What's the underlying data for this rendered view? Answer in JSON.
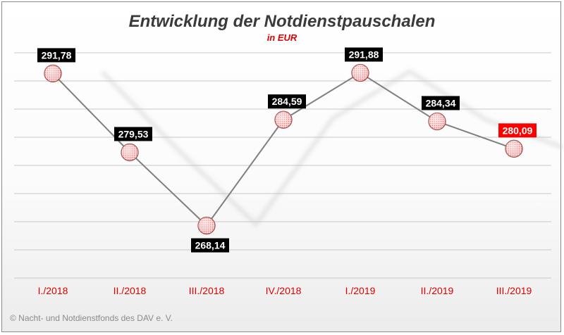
{
  "chart_data": {
    "type": "line",
    "title": "Entwicklung der Notdienstpauschalen",
    "subtitle": "in EUR",
    "categories": [
      "I./2018",
      "II./2018",
      "III./2018",
      "IV./2018",
      "I./2019",
      "II./2019",
      "III./2019"
    ],
    "values": [
      291.78,
      279.53,
      268.14,
      284.59,
      291.88,
      284.34,
      280.09
    ],
    "value_labels": [
      "291,78",
      "279,53",
      "268,14",
      "284,59",
      "291,88",
      "284,34",
      "280,09"
    ],
    "label_positions": [
      "above",
      "above",
      "below",
      "above",
      "above",
      "above",
      "above"
    ],
    "highlight_index": 6,
    "ylim": [
      260,
      295
    ],
    "gridlines": true,
    "legend": "none",
    "colors": {
      "line": "#7f7f7f",
      "marker_fill": "#f7b8b8",
      "marker_stroke": "#a05050",
      "label_bg": "#000000",
      "label_highlight_bg": "#ff0000",
      "tick_labels": "#e00000",
      "title": "#3a3a3a"
    }
  },
  "footer": {
    "copyright": "© Nacht- und Notdienstfonds des DAV e. V."
  }
}
